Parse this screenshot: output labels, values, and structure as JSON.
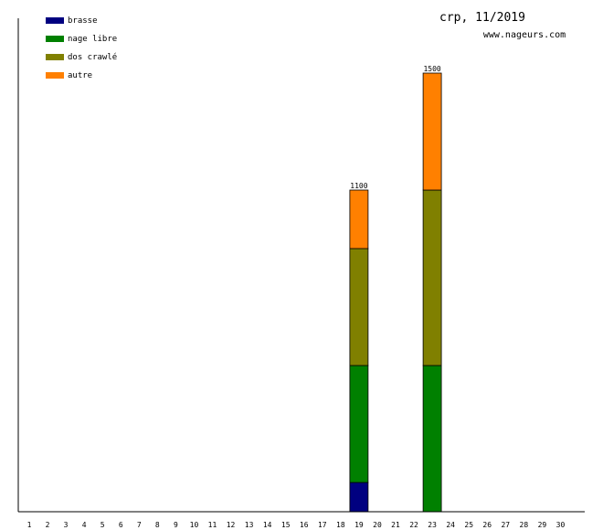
{
  "header": {
    "title": "crp, 11/2019",
    "site": "www.nageurs.com"
  },
  "chart_data": {
    "type": "bar",
    "stacked": true,
    "categories": [
      "1",
      "2",
      "3",
      "4",
      "5",
      "6",
      "7",
      "8",
      "9",
      "10",
      "11",
      "12",
      "13",
      "14",
      "15",
      "16",
      "17",
      "18",
      "19",
      "20",
      "21",
      "22",
      "23",
      "24",
      "25",
      "26",
      "27",
      "28",
      "29",
      "30"
    ],
    "series": [
      {
        "name": "brasse",
        "color": "#000080",
        "values": [
          0,
          0,
          0,
          0,
          0,
          0,
          0,
          0,
          0,
          0,
          0,
          0,
          0,
          0,
          0,
          0,
          0,
          0,
          100,
          0,
          0,
          0,
          0,
          0,
          0,
          0,
          0,
          0,
          0,
          0
        ]
      },
      {
        "name": "nage libre",
        "color": "#008000",
        "values": [
          0,
          0,
          0,
          0,
          0,
          0,
          0,
          0,
          0,
          0,
          0,
          0,
          0,
          0,
          0,
          0,
          0,
          0,
          400,
          0,
          0,
          0,
          500,
          0,
          0,
          0,
          0,
          0,
          0,
          0
        ]
      },
      {
        "name": "dos crawlé",
        "color": "#808000",
        "values": [
          0,
          0,
          0,
          0,
          0,
          0,
          0,
          0,
          0,
          0,
          0,
          0,
          0,
          0,
          0,
          0,
          0,
          0,
          400,
          0,
          0,
          0,
          600,
          0,
          0,
          0,
          0,
          0,
          0,
          0
        ]
      },
      {
        "name": "autre",
        "color": "#ff8000",
        "values": [
          0,
          0,
          0,
          0,
          0,
          0,
          0,
          0,
          0,
          0,
          0,
          0,
          0,
          0,
          0,
          0,
          0,
          0,
          200,
          0,
          0,
          0,
          400,
          0,
          0,
          0,
          0,
          0,
          0,
          0
        ]
      }
    ],
    "totals": [
      {
        "category": "19",
        "label": "1100"
      },
      {
        "category": "23",
        "label": "1500"
      }
    ],
    "ylim": [
      0,
      1500
    ],
    "legend_position": "top-left",
    "grid": false
  }
}
